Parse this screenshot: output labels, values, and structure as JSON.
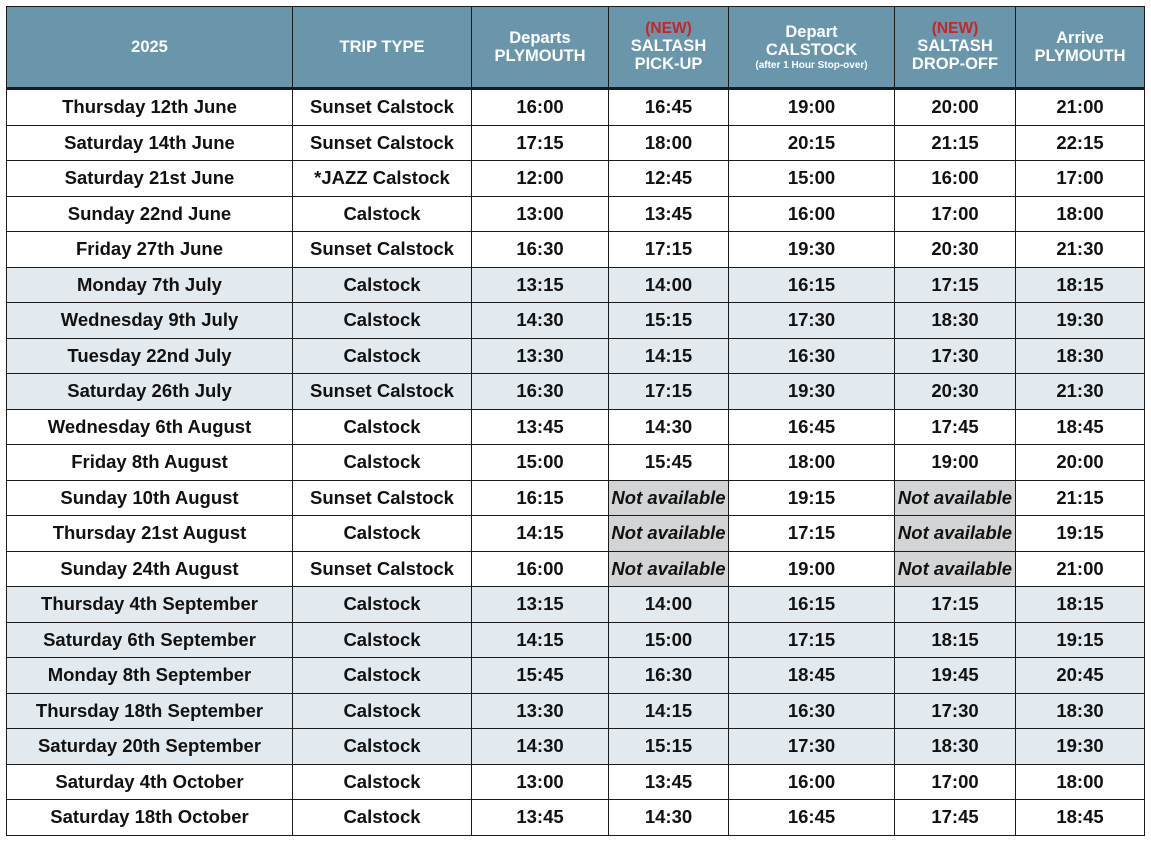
{
  "header": {
    "year": "2025",
    "trip_type": "TRIP TYPE",
    "departs_line1": "Departs",
    "departs_line2": "PLYMOUTH",
    "pickup_new": "(NEW)",
    "pickup_line1": "SALTASH",
    "pickup_line2": "PICK-UP",
    "depart_cal_line1": "Depart",
    "depart_cal_line2": "CALSTOCK",
    "depart_cal_note": "(after 1 Hour Stop-over)",
    "dropoff_new": "(NEW)",
    "dropoff_line1": "SALTASH",
    "dropoff_line2": "DROP-OFF",
    "arrive_line1": "Arrive",
    "arrive_line2": "PLYMOUTH"
  },
  "rows": [
    {
      "date": "Thursday 12th June",
      "trip": "Sunset Calstock",
      "departs": "16:00",
      "pickup": "16:45",
      "depart_cal": "19:00",
      "dropoff": "20:00",
      "arrive": "21:00"
    },
    {
      "date": "Saturday 14th June",
      "trip": "Sunset Calstock",
      "departs": "17:15",
      "pickup": "18:00",
      "depart_cal": "20:15",
      "dropoff": "21:15",
      "arrive": "22:15"
    },
    {
      "date": "Saturday 21st June",
      "trip": "*JAZZ Calstock",
      "departs": "12:00",
      "pickup": "12:45",
      "depart_cal": "15:00",
      "dropoff": "16:00",
      "arrive": "17:00"
    },
    {
      "date": "Sunday 22nd June",
      "trip": "Calstock",
      "departs": "13:00",
      "pickup": "13:45",
      "depart_cal": "16:00",
      "dropoff": "17:00",
      "arrive": "18:00"
    },
    {
      "date": "Friday 27th June",
      "trip": "Sunset Calstock",
      "departs": "16:30",
      "pickup": "17:15",
      "depart_cal": "19:30",
      "dropoff": "20:30",
      "arrive": "21:30"
    },
    {
      "date": "Monday 7th July",
      "trip": "Calstock",
      "departs": "13:15",
      "pickup": "14:00",
      "depart_cal": "16:15",
      "dropoff": "17:15",
      "arrive": "18:15"
    },
    {
      "date": "Wednesday 9th July",
      "trip": "Calstock",
      "departs": "14:30",
      "pickup": "15:15",
      "depart_cal": "17:30",
      "dropoff": "18:30",
      "arrive": "19:30"
    },
    {
      "date": "Tuesday 22nd July",
      "trip": "Calstock",
      "departs": "13:30",
      "pickup": "14:15",
      "depart_cal": "16:30",
      "dropoff": "17:30",
      "arrive": "18:30"
    },
    {
      "date": "Saturday 26th July",
      "trip": "Sunset Calstock",
      "departs": "16:30",
      "pickup": "17:15",
      "depart_cal": "19:30",
      "dropoff": "20:30",
      "arrive": "21:30"
    },
    {
      "date": "Wednesday 6th August",
      "trip": "Calstock",
      "departs": "13:45",
      "pickup": "14:30",
      "depart_cal": "16:45",
      "dropoff": "17:45",
      "arrive": "18:45"
    },
    {
      "date": "Friday 8th August",
      "trip": "Calstock",
      "departs": "15:00",
      "pickup": "15:45",
      "depart_cal": "18:00",
      "dropoff": "19:00",
      "arrive": "20:00"
    },
    {
      "date": "Sunday 10th August",
      "trip": "Sunset Calstock",
      "departs": "16:15",
      "pickup": "Not available",
      "depart_cal": "19:15",
      "dropoff": "Not available",
      "arrive": "21:15"
    },
    {
      "date": "Thursday 21st August",
      "trip": "Calstock",
      "departs": "14:15",
      "pickup": "Not available",
      "depart_cal": "17:15",
      "dropoff": "Not available",
      "arrive": "19:15"
    },
    {
      "date": "Sunday 24th August",
      "trip": "Sunset Calstock",
      "departs": "16:00",
      "pickup": "Not available",
      "depart_cal": "19:00",
      "dropoff": "Not available",
      "arrive": "21:00"
    },
    {
      "date": "Thursday 4th September",
      "trip": "Calstock",
      "departs": "13:15",
      "pickup": "14:00",
      "depart_cal": "16:15",
      "dropoff": "17:15",
      "arrive": "18:15"
    },
    {
      "date": "Saturday 6th September",
      "trip": "Calstock",
      "departs": "14:15",
      "pickup": "15:00",
      "depart_cal": "17:15",
      "dropoff": "18:15",
      "arrive": "19:15"
    },
    {
      "date": "Monday 8th September",
      "trip": "Calstock",
      "departs": "15:45",
      "pickup": "16:30",
      "depart_cal": "18:45",
      "dropoff": "19:45",
      "arrive": "20:45"
    },
    {
      "date": "Thursday 18th September",
      "trip": "Calstock",
      "departs": "13:30",
      "pickup": "14:15",
      "depart_cal": "16:30",
      "dropoff": "17:30",
      "arrive": "18:30"
    },
    {
      "date": "Saturday 20th September",
      "trip": "Calstock",
      "departs": "14:30",
      "pickup": "15:15",
      "depart_cal": "17:30",
      "dropoff": "18:30",
      "arrive": "19:30"
    },
    {
      "date": "Saturday 4th October",
      "trip": "Calstock",
      "departs": "13:00",
      "pickup": "13:45",
      "depart_cal": "16:00",
      "dropoff": "17:00",
      "arrive": "18:00"
    },
    {
      "date": "Saturday 18th October",
      "trip": "Calstock",
      "departs": "13:45",
      "pickup": "14:30",
      "depart_cal": "16:45",
      "dropoff": "17:45",
      "arrive": "18:45"
    }
  ],
  "colors": {
    "header_bg": "#6a96ab",
    "header_text": "#ffffff",
    "new_tag": "#c8242a",
    "saltash_time": "#1d6fb0",
    "row_tint": "#e3eaef",
    "not_available_bg": "#d3d4d5"
  }
}
